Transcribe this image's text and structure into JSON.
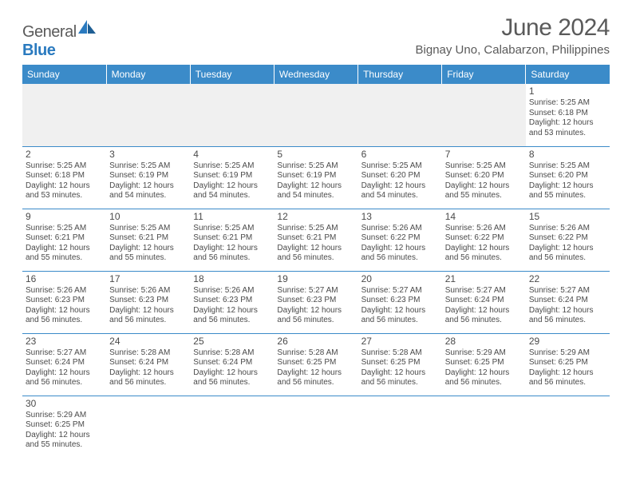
{
  "brand": {
    "part1": "General",
    "part2": "Blue"
  },
  "title": "June 2024",
  "location": "Bignay Uno, Calabarzon, Philippines",
  "colors": {
    "header_bg": "#3b8bc9",
    "header_fg": "#ffffff",
    "text": "#5a5a5a",
    "cell_border": "#3b8bc9"
  },
  "weekdays": [
    "Sunday",
    "Monday",
    "Tuesday",
    "Wednesday",
    "Thursday",
    "Friday",
    "Saturday"
  ],
  "weeks": [
    [
      null,
      null,
      null,
      null,
      null,
      null,
      {
        "d": "1",
        "sr": "5:25 AM",
        "ss": "6:18 PM",
        "dl": "12 hours and 53 minutes."
      }
    ],
    [
      {
        "d": "2",
        "sr": "5:25 AM",
        "ss": "6:18 PM",
        "dl": "12 hours and 53 minutes."
      },
      {
        "d": "3",
        "sr": "5:25 AM",
        "ss": "6:19 PM",
        "dl": "12 hours and 54 minutes."
      },
      {
        "d": "4",
        "sr": "5:25 AM",
        "ss": "6:19 PM",
        "dl": "12 hours and 54 minutes."
      },
      {
        "d": "5",
        "sr": "5:25 AM",
        "ss": "6:19 PM",
        "dl": "12 hours and 54 minutes."
      },
      {
        "d": "6",
        "sr": "5:25 AM",
        "ss": "6:20 PM",
        "dl": "12 hours and 54 minutes."
      },
      {
        "d": "7",
        "sr": "5:25 AM",
        "ss": "6:20 PM",
        "dl": "12 hours and 55 minutes."
      },
      {
        "d": "8",
        "sr": "5:25 AM",
        "ss": "6:20 PM",
        "dl": "12 hours and 55 minutes."
      }
    ],
    [
      {
        "d": "9",
        "sr": "5:25 AM",
        "ss": "6:21 PM",
        "dl": "12 hours and 55 minutes."
      },
      {
        "d": "10",
        "sr": "5:25 AM",
        "ss": "6:21 PM",
        "dl": "12 hours and 55 minutes."
      },
      {
        "d": "11",
        "sr": "5:25 AM",
        "ss": "6:21 PM",
        "dl": "12 hours and 56 minutes."
      },
      {
        "d": "12",
        "sr": "5:25 AM",
        "ss": "6:21 PM",
        "dl": "12 hours and 56 minutes."
      },
      {
        "d": "13",
        "sr": "5:26 AM",
        "ss": "6:22 PM",
        "dl": "12 hours and 56 minutes."
      },
      {
        "d": "14",
        "sr": "5:26 AM",
        "ss": "6:22 PM",
        "dl": "12 hours and 56 minutes."
      },
      {
        "d": "15",
        "sr": "5:26 AM",
        "ss": "6:22 PM",
        "dl": "12 hours and 56 minutes."
      }
    ],
    [
      {
        "d": "16",
        "sr": "5:26 AM",
        "ss": "6:23 PM",
        "dl": "12 hours and 56 minutes."
      },
      {
        "d": "17",
        "sr": "5:26 AM",
        "ss": "6:23 PM",
        "dl": "12 hours and 56 minutes."
      },
      {
        "d": "18",
        "sr": "5:26 AM",
        "ss": "6:23 PM",
        "dl": "12 hours and 56 minutes."
      },
      {
        "d": "19",
        "sr": "5:27 AM",
        "ss": "6:23 PM",
        "dl": "12 hours and 56 minutes."
      },
      {
        "d": "20",
        "sr": "5:27 AM",
        "ss": "6:23 PM",
        "dl": "12 hours and 56 minutes."
      },
      {
        "d": "21",
        "sr": "5:27 AM",
        "ss": "6:24 PM",
        "dl": "12 hours and 56 minutes."
      },
      {
        "d": "22",
        "sr": "5:27 AM",
        "ss": "6:24 PM",
        "dl": "12 hours and 56 minutes."
      }
    ],
    [
      {
        "d": "23",
        "sr": "5:27 AM",
        "ss": "6:24 PM",
        "dl": "12 hours and 56 minutes."
      },
      {
        "d": "24",
        "sr": "5:28 AM",
        "ss": "6:24 PM",
        "dl": "12 hours and 56 minutes."
      },
      {
        "d": "25",
        "sr": "5:28 AM",
        "ss": "6:24 PM",
        "dl": "12 hours and 56 minutes."
      },
      {
        "d": "26",
        "sr": "5:28 AM",
        "ss": "6:25 PM",
        "dl": "12 hours and 56 minutes."
      },
      {
        "d": "27",
        "sr": "5:28 AM",
        "ss": "6:25 PM",
        "dl": "12 hours and 56 minutes."
      },
      {
        "d": "28",
        "sr": "5:29 AM",
        "ss": "6:25 PM",
        "dl": "12 hours and 56 minutes."
      },
      {
        "d": "29",
        "sr": "5:29 AM",
        "ss": "6:25 PM",
        "dl": "12 hours and 56 minutes."
      }
    ],
    [
      {
        "d": "30",
        "sr": "5:29 AM",
        "ss": "6:25 PM",
        "dl": "12 hours and 55 minutes."
      },
      null,
      null,
      null,
      null,
      null,
      null
    ]
  ],
  "labels": {
    "sunrise": "Sunrise:",
    "sunset": "Sunset:",
    "daylight": "Daylight:"
  }
}
